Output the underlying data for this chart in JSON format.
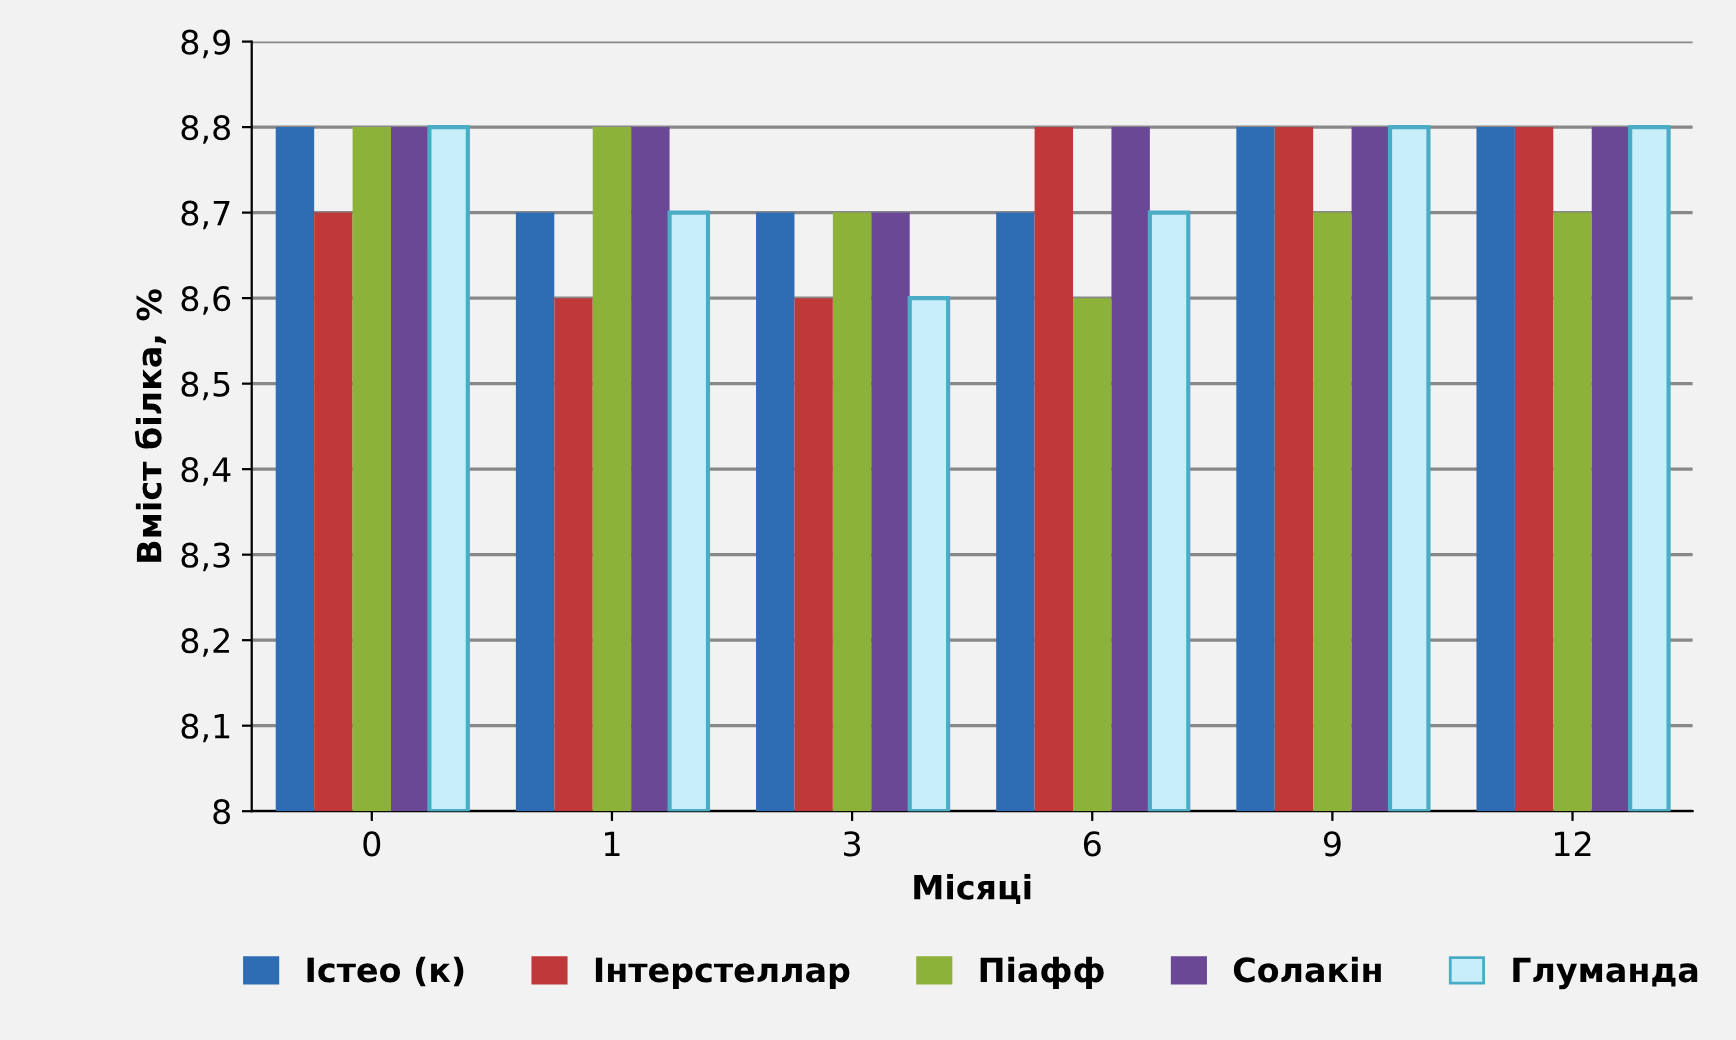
{
  "chart_data": {
    "type": "bar",
    "xlabel": "Місяці",
    "ylabel": "Вміст білка, %",
    "categories": [
      "0",
      "1",
      "3",
      "6",
      "9",
      "12"
    ],
    "series": [
      {
        "name": "Істео (к)",
        "color": "#2e6db4",
        "values": [
          8.8,
          8.7,
          8.7,
          8.7,
          8.8,
          8.8
        ]
      },
      {
        "name": "Інтерстеллар",
        "color": "#c0393a",
        "values": [
          8.7,
          8.6,
          8.6,
          8.8,
          8.8,
          8.8
        ]
      },
      {
        "name": "Піафф",
        "color": "#8db23a",
        "values": [
          8.8,
          8.8,
          8.7,
          8.6,
          8.7,
          8.7
        ]
      },
      {
        "name": "Солакін",
        "color": "#6b4896",
        "values": [
          8.8,
          8.8,
          8.7,
          8.8,
          8.8,
          8.8
        ]
      },
      {
        "name": "Глуманда",
        "color": "#c8eefa",
        "values": [
          8.8,
          8.7,
          8.6,
          8.7,
          8.8,
          8.8
        ]
      }
    ],
    "ylim": [
      8,
      8.9
    ],
    "yticks": [
      8,
      {
        "value": 8.1,
        "label": "8,1"
      },
      {
        "value": 8.2,
        "label": "8,2"
      },
      {
        "value": 8.3,
        "label": "8,3"
      },
      {
        "value": 8.4,
        "label": "8,4"
      },
      {
        "value": 8.5,
        "label": "8,5"
      },
      {
        "value": 8.6,
        "label": "8,6"
      },
      {
        "value": 8.7,
        "label": "8,7"
      },
      {
        "value": 8.8,
        "label": "8,8"
      },
      {
        "value": 8.9,
        "label": "8,9"
      }
    ],
    "grid": "y",
    "legend": "bottom"
  }
}
